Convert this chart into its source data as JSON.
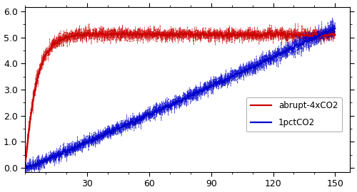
{
  "title": "",
  "xlabel": "",
  "ylabel": "",
  "xlim": [
    0,
    157
  ],
  "ylim": [
    -0.15,
    6.15
  ],
  "yticks": [
    0.0,
    1.0,
    2.0,
    3.0,
    4.0,
    5.0,
    6.0
  ],
  "xticks": [
    30,
    60,
    90,
    120,
    150
  ],
  "n_steps": 1800,
  "n_years": 150,
  "abrupt_color": "#cc0000",
  "pct_color": "#0000cc",
  "ensemble_mean_lw": 1.6,
  "ensemble_member_lw": 0.55,
  "legend_labels": [
    "abrupt-4xCO2",
    "1pctCO2"
  ],
  "background_color": "#ffffff",
  "seed": 7
}
